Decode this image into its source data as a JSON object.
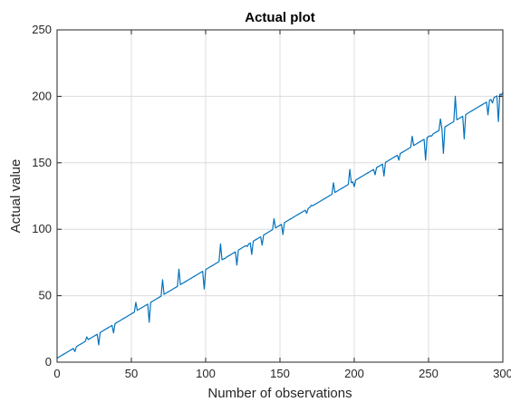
{
  "chart_data": {
    "type": "line",
    "title": "Actual plot",
    "xlabel": "Number of observations",
    "ylabel": "Actual value",
    "xlim": [
      0,
      300
    ],
    "ylim": [
      0,
      250
    ],
    "xticks": [
      0,
      50,
      100,
      150,
      200,
      250,
      300
    ],
    "yticks": [
      0,
      50,
      100,
      150,
      200,
      250
    ],
    "grid": true,
    "line_color": "#0072BD",
    "trend": {
      "start": [
        0,
        3
      ],
      "end": [
        300,
        203
      ]
    },
    "spikes": [
      {
        "x": 12,
        "y": 8
      },
      {
        "x": 20,
        "y": 19
      },
      {
        "x": 28,
        "y": 13
      },
      {
        "x": 38,
        "y": 22
      },
      {
        "x": 53,
        "y": 45
      },
      {
        "x": 62,
        "y": 30
      },
      {
        "x": 71,
        "y": 62
      },
      {
        "x": 82,
        "y": 70
      },
      {
        "x": 99,
        "y": 55
      },
      {
        "x": 110,
        "y": 89
      },
      {
        "x": 113,
        "y": 78
      },
      {
        "x": 121,
        "y": 73
      },
      {
        "x": 128,
        "y": 87
      },
      {
        "x": 131,
        "y": 81
      },
      {
        "x": 138,
        "y": 88
      },
      {
        "x": 146,
        "y": 108
      },
      {
        "x": 152,
        "y": 96
      },
      {
        "x": 168,
        "y": 112
      },
      {
        "x": 171,
        "y": 118
      },
      {
        "x": 186,
        "y": 135
      },
      {
        "x": 197,
        "y": 145
      },
      {
        "x": 200,
        "y": 132
      },
      {
        "x": 214,
        "y": 141
      },
      {
        "x": 220,
        "y": 140
      },
      {
        "x": 230,
        "y": 152
      },
      {
        "x": 239,
        "y": 170
      },
      {
        "x": 248,
        "y": 152
      },
      {
        "x": 252,
        "y": 170
      },
      {
        "x": 258,
        "y": 183
      },
      {
        "x": 260,
        "y": 157
      },
      {
        "x": 268,
        "y": 200
      },
      {
        "x": 274,
        "y": 168
      },
      {
        "x": 290,
        "y": 186
      },
      {
        "x": 293,
        "y": 195
      },
      {
        "x": 297,
        "y": 181
      },
      {
        "x": 299,
        "y": 201
      }
    ]
  }
}
